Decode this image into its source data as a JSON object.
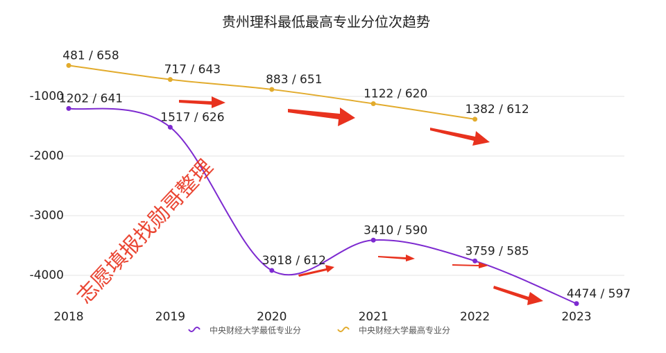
{
  "chart_data": {
    "type": "line",
    "title": "贵州理科最低最高专业分位次趋势",
    "categories": [
      "2018",
      "2019",
      "2020",
      "2021",
      "2022",
      "2023"
    ],
    "series": [
      {
        "name": "中央财经大学最低专业分",
        "color": "#7d2ad0",
        "values": [
          -1202,
          -1517,
          -3918,
          -3410,
          -3759,
          -4474
        ],
        "value_labels": [
          "1202 / 641",
          "1517 / 626",
          "3918 / 612",
          "3410 / 590",
          "3759 / 585",
          "4474 / 597"
        ]
      },
      {
        "name": "中央财经大学最高专业分",
        "color": "#e2ab2c",
        "values": [
          -481,
          -717,
          -883,
          -1122,
          -1382,
          null
        ],
        "value_labels": [
          "481 / 658",
          "717 / 643",
          "883 / 651",
          "1122 / 620",
          "1382 / 612",
          null
        ]
      }
    ],
    "ylim": [
      -4500,
      0
    ],
    "yticks": [
      -4000,
      -3000,
      -2000,
      -1000
    ],
    "grid": true,
    "legend": "bottom",
    "annotations": [
      "志愿填报找勋哥整理"
    ]
  }
}
